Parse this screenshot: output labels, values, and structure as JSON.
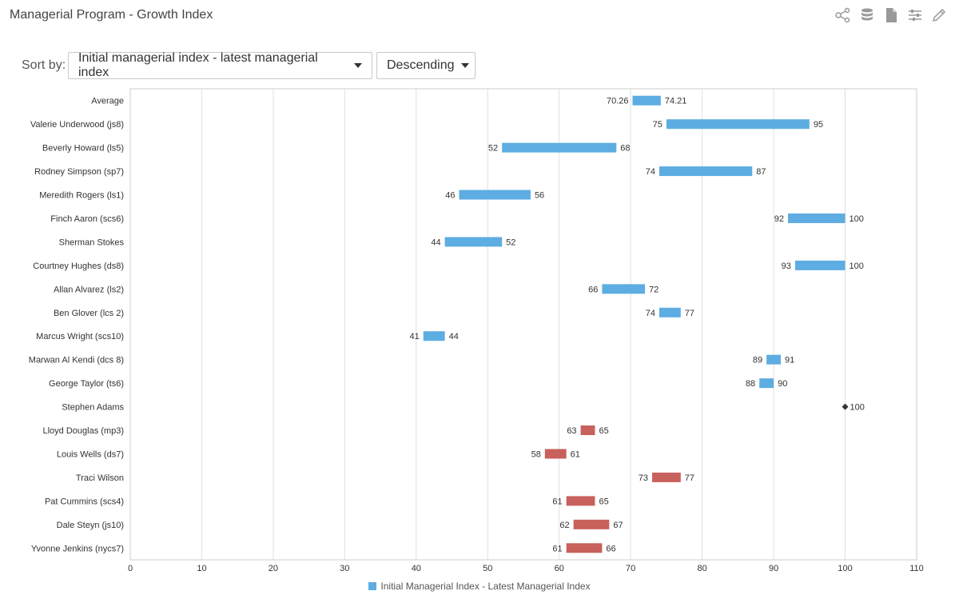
{
  "header": {
    "title": "Managerial Program - Growth Index"
  },
  "toolbar": {
    "icons": [
      "network-icon",
      "database-icon",
      "document-icon",
      "filter-list-icon",
      "edit-icon"
    ]
  },
  "sort": {
    "label": "Sort by:",
    "field_value": "Initial managerial index - latest managerial index",
    "order_value": "Descending"
  },
  "colors": {
    "increase": "#5dade2",
    "decrease": "#c8605c",
    "grid": "#e0e0e0",
    "axis": "#cccccc"
  },
  "chart_data": {
    "type": "range-bar",
    "title": "Managerial Program - Growth Index",
    "xlim": [
      0,
      110
    ],
    "xticks": [
      0,
      10,
      20,
      30,
      40,
      50,
      60,
      70,
      80,
      90,
      100,
      110
    ],
    "legend": "Initial Managerial Index - Latest Managerial Index",
    "rows": [
      {
        "name": "Average",
        "start": "70.26",
        "end": "74.21",
        "trend": "up"
      },
      {
        "name": "Valerie Underwood (js8)",
        "start": "75",
        "end": "95",
        "trend": "up"
      },
      {
        "name": "Beverly Howard (ls5)",
        "start": "52",
        "end": "68",
        "trend": "up"
      },
      {
        "name": "Rodney Simpson (sp7)",
        "start": "74",
        "end": "87",
        "trend": "up"
      },
      {
        "name": "Meredith Rogers (ls1)",
        "start": "46",
        "end": "56",
        "trend": "up"
      },
      {
        "name": "Finch Aaron (scs6)",
        "start": "92",
        "end": "100",
        "trend": "up"
      },
      {
        "name": "Sherman Stokes",
        "start": "44",
        "end": "52",
        "trend": "up"
      },
      {
        "name": "Courtney Hughes (ds8)",
        "start": "93",
        "end": "100",
        "trend": "up"
      },
      {
        "name": "Allan Alvarez (ls2)",
        "start": "66",
        "end": "72",
        "trend": "up"
      },
      {
        "name": "Ben Glover (lcs 2)",
        "start": "74",
        "end": "77",
        "trend": "up"
      },
      {
        "name": "Marcus Wright (scs10)",
        "start": "41",
        "end": "44",
        "trend": "up"
      },
      {
        "name": "Marwan Al Kendi (dcs 8)",
        "start": "89",
        "end": "91",
        "trend": "up"
      },
      {
        "name": "George Taylor (ts6)",
        "start": "88",
        "end": "90",
        "trend": "up"
      },
      {
        "name": "Stephen Adams",
        "start": "100",
        "end": "100",
        "trend": "same"
      },
      {
        "name": "Lloyd Douglas (mp3)",
        "start": "63",
        "end": "65",
        "trend": "down"
      },
      {
        "name": "Louis Wells (ds7)",
        "start": "58",
        "end": "61",
        "trend": "down"
      },
      {
        "name": "Traci Wilson",
        "start": "73",
        "end": "77",
        "trend": "down"
      },
      {
        "name": "Pat Cummins (scs4)",
        "start": "61",
        "end": "65",
        "trend": "down"
      },
      {
        "name": "Dale Steyn (js10)",
        "start": "62",
        "end": "67",
        "trend": "down"
      },
      {
        "name": "Yvonne Jenkins (nycs7)",
        "start": "61",
        "end": "66",
        "trend": "down"
      }
    ]
  }
}
